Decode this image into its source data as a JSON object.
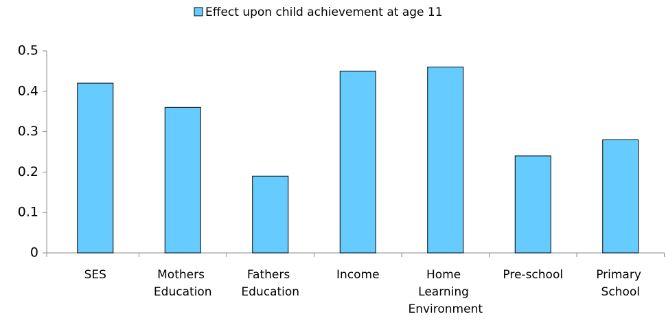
{
  "chart_data": {
    "type": "bar",
    "categories": [
      "SES",
      "Mothers Education",
      "Fathers Education",
      "Income",
      "Home Learning Environment",
      "Pre-school",
      "Primary School"
    ],
    "series": [
      {
        "name": "Effect upon child achievement at age 11",
        "color": "#66ccff",
        "values": [
          0.42,
          0.36,
          0.19,
          0.45,
          0.46,
          0.24,
          0.28
        ]
      }
    ],
    "ylim": [
      0,
      0.5
    ],
    "yticks": [
      0,
      0.1,
      0.2,
      0.3,
      0.4,
      0.5
    ],
    "grid": false,
    "legend": "top"
  }
}
